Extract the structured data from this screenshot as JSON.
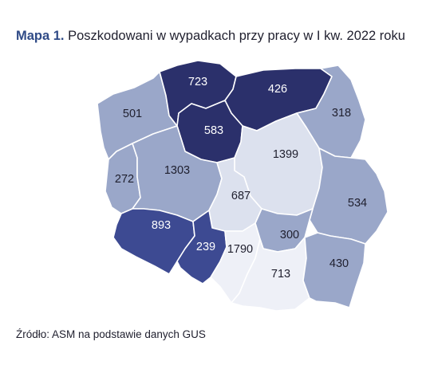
{
  "title": {
    "lead": "Mapa 1.",
    "text": "Poszkodowani w wypadkach przy pracy w I kw. 2022 roku"
  },
  "source": "Źródło: ASM na podstawie danych GUS",
  "colors": {
    "darkest": "#2b306b",
    "dark": "#3d4a92",
    "medium": "#9aa7c9",
    "light": "#dce1ee",
    "lightest": "#eef0f7",
    "text_dark": "#ffffff",
    "text_light": "#1f1f2e"
  },
  "regions": [
    {
      "id": "zachodniopomorskie",
      "value": "501",
      "shade": "medium"
    },
    {
      "id": "pomorskie",
      "value": "723",
      "shade": "darkest"
    },
    {
      "id": "warminsko-mazurskie",
      "value": "426",
      "shade": "darkest"
    },
    {
      "id": "podlaskie",
      "value": "318",
      "shade": "medium"
    },
    {
      "id": "kujawsko-pomorskie",
      "value": "583",
      "shade": "darkest"
    },
    {
      "id": "lubuskie",
      "value": "272",
      "shade": "medium"
    },
    {
      "id": "wielkopolskie",
      "value": "1303",
      "shade": "medium"
    },
    {
      "id": "mazowieckie",
      "value": "1399",
      "shade": "light"
    },
    {
      "id": "lodzkie",
      "value": "687",
      "shade": "light"
    },
    {
      "id": "lubelskie",
      "value": "534",
      "shade": "medium"
    },
    {
      "id": "dolnoslaskie",
      "value": "893",
      "shade": "dark"
    },
    {
      "id": "opolskie",
      "value": "239",
      "shade": "dark"
    },
    {
      "id": "slaskie",
      "value": "1790",
      "shade": "lightest"
    },
    {
      "id": "swietokrzyskie",
      "value": "300",
      "shade": "medium"
    },
    {
      "id": "malopolskie",
      "value": "713",
      "shade": "lightest"
    },
    {
      "id": "podkarpackie",
      "value": "430",
      "shade": "medium"
    }
  ]
}
